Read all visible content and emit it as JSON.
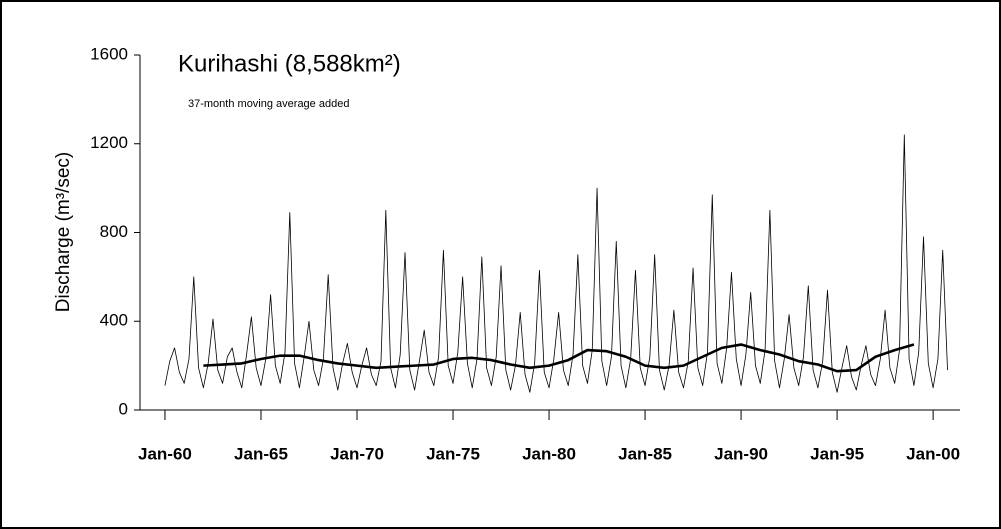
{
  "chart_data": {
    "type": "line",
    "title": "Kurihashi (8,588km²)",
    "annotation": "37-month moving average added",
    "y_label": "Discharge (m³/sec)",
    "ylim": [
      0,
      1600
    ],
    "yticks": [
      0,
      400,
      800,
      1200,
      1600
    ],
    "xlim": [
      1958.7,
      2001.4
    ],
    "xticks": [
      {
        "value": 1960,
        "label": "Jan-60"
      },
      {
        "value": 1965,
        "label": "Jan-65"
      },
      {
        "value": 1970,
        "label": "Jan-70"
      },
      {
        "value": 1975,
        "label": "Jan-75"
      },
      {
        "value": 1980,
        "label": "Jan-80"
      },
      {
        "value": 1985,
        "label": "Jan-85"
      },
      {
        "value": 1990,
        "label": "Jan-90"
      },
      {
        "value": 1995,
        "label": "Jan-95"
      },
      {
        "value": 2000,
        "label": "Jan-00"
      }
    ],
    "series": [
      {
        "color": "#000000",
        "width": 0.8,
        "x": [
          1960,
          1960.25,
          1960.5,
          1960.75,
          1961,
          1961.25,
          1961.5,
          1961.75,
          1962,
          1962.25,
          1962.5,
          1962.75,
          1963,
          1963.25,
          1963.5,
          1963.75,
          1964,
          1964.25,
          1964.5,
          1964.75,
          1965,
          1965.25,
          1965.5,
          1965.75,
          1966,
          1966.25,
          1966.5,
          1966.75,
          1967,
          1967.25,
          1967.5,
          1967.75,
          1968,
          1968.25,
          1968.5,
          1968.75,
          1969,
          1969.25,
          1969.5,
          1969.75,
          1970,
          1970.25,
          1970.5,
          1970.75,
          1971,
          1971.25,
          1971.5,
          1971.75,
          1972,
          1972.25,
          1972.5,
          1972.75,
          1973,
          1973.25,
          1973.5,
          1973.75,
          1974,
          1974.25,
          1974.5,
          1974.75,
          1975,
          1975.25,
          1975.5,
          1975.75,
          1976,
          1976.25,
          1976.5,
          1976.75,
          1977,
          1977.25,
          1977.5,
          1977.75,
          1978,
          1978.25,
          1978.5,
          1978.75,
          1979,
          1979.25,
          1979.5,
          1979.75,
          1980,
          1980.25,
          1980.5,
          1980.75,
          1981,
          1981.25,
          1981.5,
          1981.75,
          1982,
          1982.25,
          1982.5,
          1982.75,
          1983,
          1983.25,
          1983.5,
          1983.75,
          1984,
          1984.25,
          1984.5,
          1984.75,
          1985,
          1985.25,
          1985.5,
          1985.75,
          1986,
          1986.25,
          1986.5,
          1986.75,
          1987,
          1987.25,
          1987.5,
          1987.75,
          1988,
          1988.25,
          1988.5,
          1988.75,
          1989,
          1989.25,
          1989.5,
          1989.75,
          1990,
          1990.25,
          1990.5,
          1990.75,
          1991,
          1991.25,
          1991.5,
          1991.75,
          1992,
          1992.25,
          1992.5,
          1992.75,
          1993,
          1993.25,
          1993.5,
          1993.75,
          1994,
          1994.25,
          1994.5,
          1994.75,
          1995,
          1995.25,
          1995.5,
          1995.75,
          1996,
          1996.25,
          1996.5,
          1996.75,
          1997,
          1997.25,
          1997.5,
          1997.75,
          1998,
          1998.25,
          1998.5,
          1998.75,
          1999,
          1999.25,
          1999.5,
          1999.75,
          2000,
          2000.25,
          2000.5,
          2000.75
        ],
        "values": [
          110,
          220,
          280,
          170,
          120,
          230,
          600,
          190,
          100,
          210,
          410,
          180,
          120,
          240,
          280,
          170,
          100,
          250,
          420,
          190,
          110,
          230,
          520,
          200,
          120,
          260,
          890,
          210,
          100,
          240,
          400,
          180,
          110,
          230,
          610,
          190,
          90,
          210,
          300,
          170,
          100,
          200,
          280,
          160,
          110,
          220,
          900,
          190,
          100,
          250,
          710,
          180,
          90,
          220,
          360,
          170,
          110,
          240,
          720,
          200,
          120,
          260,
          600,
          210,
          100,
          230,
          690,
          190,
          110,
          240,
          650,
          180,
          90,
          200,
          440,
          160,
          80,
          210,
          630,
          170,
          100,
          230,
          440,
          180,
          110,
          250,
          700,
          200,
          120,
          270,
          1000,
          220,
          110,
          240,
          760,
          200,
          100,
          230,
          630,
          190,
          110,
          240,
          700,
          180,
          90,
          200,
          450,
          170,
          100,
          220,
          640,
          190,
          110,
          260,
          970,
          210,
          120,
          280,
          620,
          230,
          110,
          250,
          530,
          200,
          120,
          270,
          900,
          220,
          100,
          230,
          430,
          190,
          110,
          240,
          560,
          180,
          100,
          220,
          540,
          170,
          80,
          190,
          290,
          150,
          90,
          200,
          290,
          160,
          110,
          230,
          450,
          190,
          120,
          270,
          1240,
          230,
          110,
          260,
          780,
          210,
          100,
          230,
          720,
          180
        ]
      },
      {
        "color": "#000000",
        "width": 2.6,
        "x": [
          1962,
          1963,
          1964,
          1965,
          1966,
          1967,
          1968,
          1969,
          1970,
          1971,
          1972,
          1973,
          1974,
          1975,
          1976,
          1977,
          1978,
          1979,
          1980,
          1981,
          1982,
          1983,
          1984,
          1985,
          1986,
          1987,
          1988,
          1989,
          1990,
          1991,
          1992,
          1993,
          1994,
          1995,
          1996,
          1997,
          1998,
          1999
        ],
        "values": [
          200,
          205,
          210,
          230,
          245,
          245,
          225,
          210,
          200,
          190,
          195,
          200,
          205,
          230,
          235,
          225,
          205,
          190,
          200,
          225,
          270,
          265,
          240,
          200,
          190,
          200,
          240,
          280,
          295,
          270,
          250,
          220,
          205,
          175,
          180,
          240,
          270,
          295
        ]
      }
    ]
  }
}
